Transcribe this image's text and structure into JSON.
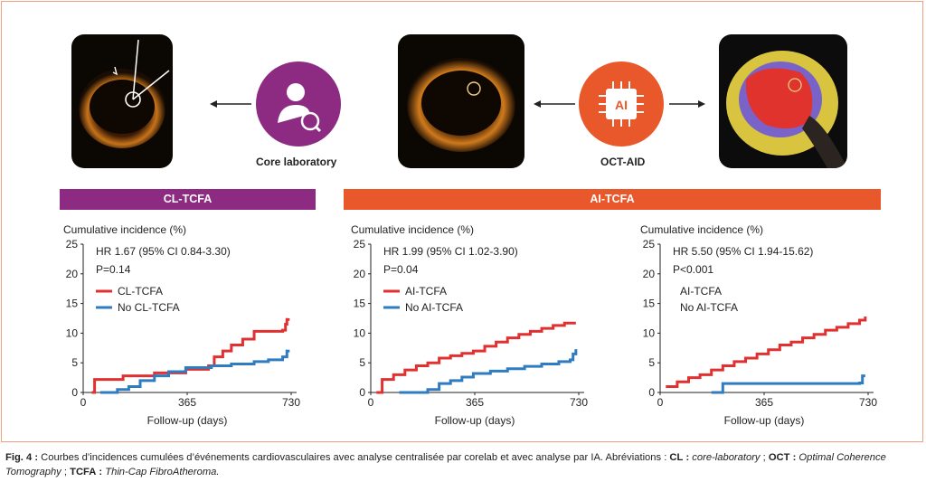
{
  "diagram": {
    "core_lab_label": "Core laboratory",
    "oct_aid_label": "OCT-AID",
    "ai_icon_text": "AI"
  },
  "bands": {
    "left": "CL-TCFA",
    "right": "AI-TCFA"
  },
  "colors": {
    "purple": "#8d2a82",
    "orange": "#e8582a",
    "red": "#e03030",
    "blue": "#2f7cc0"
  },
  "chart_data": [
    {
      "type": "line",
      "ylabel": "Cumulative incidence (%)",
      "xlabel": "Follow-up (days)",
      "xlim": [
        0,
        730
      ],
      "ylim": [
        0,
        25
      ],
      "xticks": [
        0,
        365,
        730
      ],
      "yticks": [
        0,
        5,
        10,
        15,
        20,
        25
      ],
      "hr_text": "HR 1.67 (95% CI 0.84-3.30)",
      "p_text": "P=0.14",
      "series": [
        {
          "name": "CL-TCFA",
          "color": "#e03030",
          "x": [
            30,
            40,
            140,
            250,
            360,
            440,
            460,
            490,
            520,
            560,
            600,
            700,
            710,
            715,
            720
          ],
          "y": [
            0,
            2.2,
            2.8,
            3.3,
            3.9,
            4.5,
            6.0,
            7.0,
            8.0,
            9.0,
            10.3,
            10.5,
            11.5,
            12.3,
            12.5
          ]
        },
        {
          "name": "No CL-TCFA",
          "color": "#2f7cc0",
          "x": [
            60,
            120,
            160,
            200,
            250,
            300,
            360,
            450,
            520,
            600,
            650,
            700,
            715,
            720
          ],
          "y": [
            0,
            0.5,
            1.0,
            2.0,
            2.8,
            3.5,
            4.2,
            4.5,
            4.8,
            5.2,
            5.5,
            6.0,
            7.0,
            7.2
          ]
        }
      ]
    },
    {
      "type": "line",
      "ylabel": "Cumulative incidence (%)",
      "xlabel": "Follow-up (days)",
      "xlim": [
        0,
        730
      ],
      "ylim": [
        0,
        25
      ],
      "xticks": [
        0,
        365,
        730
      ],
      "yticks": [
        0,
        5,
        10,
        15,
        20,
        25
      ],
      "hr_text": "HR 1.99 (95% CI 1.02-3.90)",
      "p_text": "P=0.04",
      "series": [
        {
          "name": "AI-TCFA",
          "color": "#e03030",
          "x": [
            20,
            40,
            80,
            120,
            160,
            200,
            240,
            280,
            320,
            360,
            400,
            440,
            480,
            520,
            560,
            600,
            640,
            680,
            720
          ],
          "y": [
            0,
            2.2,
            3.0,
            3.8,
            4.5,
            5.0,
            5.8,
            6.2,
            6.6,
            7.0,
            7.8,
            8.5,
            9.2,
            9.8,
            10.3,
            10.8,
            11.3,
            11.7,
            11.7
          ]
        },
        {
          "name": "No AI-TCFA",
          "color": "#2f7cc0",
          "x": [
            100,
            200,
            240,
            280,
            320,
            360,
            420,
            480,
            540,
            600,
            660,
            700,
            710,
            720
          ],
          "y": [
            0,
            0.5,
            1.5,
            2.0,
            2.6,
            3.2,
            3.6,
            4.0,
            4.4,
            4.8,
            5.2,
            5.5,
            6.5,
            7.3
          ]
        }
      ]
    },
    {
      "type": "line",
      "ylabel": "Cumulative incidence (%)",
      "xlabel": "Follow-up (days)",
      "xlim": [
        0,
        730
      ],
      "ylim": [
        0,
        25
      ],
      "xticks": [
        0,
        365,
        730
      ],
      "yticks": [
        0,
        5,
        10,
        15,
        20,
        25
      ],
      "hr_text": "HR 5.50 (95% CI 1.94-15.62)",
      "p_text": "P<0.001",
      "series": [
        {
          "name": "AI-TCFA",
          "color": "#e03030",
          "x": [
            20,
            60,
            100,
            140,
            180,
            220,
            260,
            300,
            340,
            380,
            420,
            460,
            500,
            540,
            580,
            620,
            660,
            700,
            720
          ],
          "y": [
            1.0,
            1.8,
            2.5,
            3.0,
            3.8,
            4.5,
            5.2,
            5.8,
            6.5,
            7.2,
            8.0,
            8.5,
            9.2,
            9.8,
            10.5,
            11.0,
            11.6,
            12.2,
            12.8
          ]
        },
        {
          "name": "No AI-TCFA",
          "color": "#2f7cc0",
          "x": [
            180,
            220,
            300,
            400,
            500,
            600,
            700,
            710,
            720
          ],
          "y": [
            0,
            1.5,
            1.5,
            1.5,
            1.5,
            1.5,
            1.6,
            2.8,
            2.8
          ]
        }
      ]
    }
  ],
  "caption": {
    "label": "Fig. 4 :",
    "text1": " Courbes d’incidences cumulées d’événements cardiovasculaires avec analyse centralisée par corelab et avec analyse par IA. Abréviations : ",
    "cl_abbr": "CL :",
    "cl_def": " core-laboratory",
    "sep1": " ; ",
    "oct_abbr": "OCT :",
    "oct_def": " Optimal Coherence Tomography",
    "sep2": " ; ",
    "tcfa_abbr": "TCFA :",
    "tcfa_def": " Thin-Cap FibroAtheroma."
  }
}
